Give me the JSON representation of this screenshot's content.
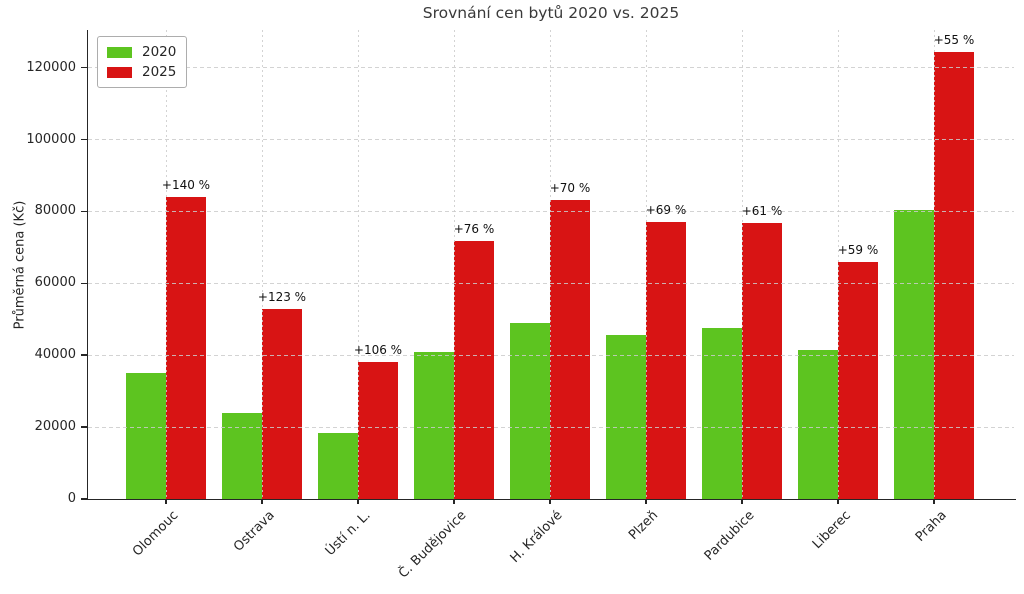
{
  "chart_data": {
    "type": "bar",
    "title": "Srovnání cen bytů 2020 vs. 2025",
    "ylabel": "Průměrná cena (Kč)",
    "xlabel": "",
    "categories": [
      "Olomouc",
      "Ostrava",
      "Ústí n. L.",
      "Č. Budějovice",
      "H. Králové",
      "Plzeň",
      "Pardubice",
      "Liberec",
      "Praha"
    ],
    "series": [
      {
        "name": "2020",
        "color": "#5dc420",
        "values": [
          35000,
          23800,
          18500,
          40800,
          49000,
          45600,
          47700,
          41500,
          80300
        ]
      },
      {
        "name": "2025",
        "color": "#d81414",
        "values": [
          84000,
          53000,
          38100,
          71800,
          83300,
          77000,
          76800,
          66000,
          124500
        ]
      }
    ],
    "bar_labels": [
      "+140 %",
      "+123 %",
      "+106 %",
      "+76 %",
      "+70 %",
      "+69 %",
      "+61 %",
      "+59 %",
      "+55 %"
    ],
    "yticks": [
      0,
      20000,
      40000,
      60000,
      80000,
      100000,
      120000
    ],
    "ylim": [
      0,
      130500
    ],
    "grid": true,
    "legend_position": "upper left"
  }
}
